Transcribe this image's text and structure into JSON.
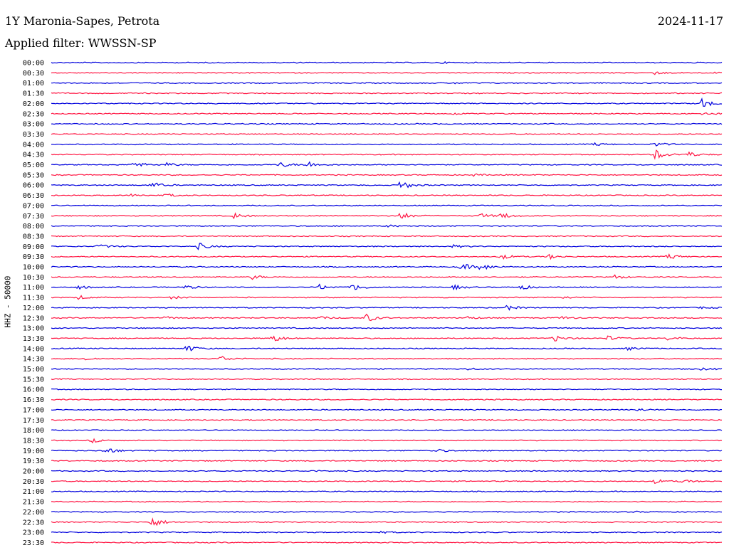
{
  "header": {
    "station": "1Y Maronia-Sapes, Petrota",
    "date": "2024-11-17",
    "filter_label": "Applied filter:",
    "filter_value": "WWSSN-SP",
    "channel": "HHZ - 50000"
  },
  "colors": {
    "even_trace": "#0000dd",
    "odd_trace": "#ff1744"
  },
  "chart_data": {
    "type": "line",
    "title": "1Y Maronia-Sapes, Petrota",
    "subtitle": "Applied filter: WWSSN-SP",
    "ylabel": "HHZ - 50000",
    "xlabel": "",
    "grid": false,
    "legend": "none",
    "traces": [
      {
        "time": "00:00",
        "events": [
          {
            "t": 0.58,
            "a": 0.25
          }
        ]
      },
      {
        "time": "00:30",
        "events": [
          {
            "t": 0.9,
            "a": 0.5
          },
          {
            "t": 0.99,
            "a": 0.15
          }
        ]
      },
      {
        "time": "01:00",
        "events": [
          {
            "t": 0.6,
            "a": 0.2
          }
        ]
      },
      {
        "time": "01:30",
        "events": []
      },
      {
        "time": "02:00",
        "events": [
          {
            "t": 0.97,
            "a": 2.0
          }
        ]
      },
      {
        "time": "02:30",
        "events": [
          {
            "t": 0.6,
            "a": 0.3
          },
          {
            "t": 0.97,
            "a": 0.6
          }
        ]
      },
      {
        "time": "03:00",
        "events": [
          {
            "t": 0.27,
            "a": 0.15
          }
        ]
      },
      {
        "time": "03:30",
        "events": [
          {
            "t": 0.17,
            "a": 0.15
          }
        ]
      },
      {
        "time": "04:00",
        "events": [
          {
            "t": 0.81,
            "a": 0.6
          },
          {
            "t": 0.9,
            "a": 0.9
          }
        ]
      },
      {
        "time": "04:30",
        "events": [
          {
            "t": 0.9,
            "a": 2.2
          },
          {
            "t": 0.95,
            "a": 1.0
          }
        ]
      },
      {
        "time": "05:00",
        "events": [
          {
            "t": 0.12,
            "a": 1.5
          },
          {
            "t": 0.17,
            "a": 0.8
          },
          {
            "t": 0.34,
            "a": 1.2
          },
          {
            "t": 0.38,
            "a": 1.5
          }
        ]
      },
      {
        "time": "05:30",
        "events": [
          {
            "t": 0.63,
            "a": 0.4
          }
        ]
      },
      {
        "time": "06:00",
        "events": [
          {
            "t": 0.15,
            "a": 1.2
          },
          {
            "t": 0.52,
            "a": 2.0
          }
        ]
      },
      {
        "time": "06:30",
        "events": [
          {
            "t": 0.12,
            "a": 0.5
          },
          {
            "t": 0.17,
            "a": 0.7
          }
        ]
      },
      {
        "time": "07:00",
        "events": []
      },
      {
        "time": "07:30",
        "events": [
          {
            "t": 0.27,
            "a": 1.2
          },
          {
            "t": 0.52,
            "a": 1.6
          },
          {
            "t": 0.64,
            "a": 0.8
          },
          {
            "t": 0.67,
            "a": 1.2
          }
        ]
      },
      {
        "time": "08:00",
        "events": [
          {
            "t": 0.5,
            "a": 0.5
          }
        ]
      },
      {
        "time": "08:30",
        "events": []
      },
      {
        "time": "09:00",
        "events": [
          {
            "t": 0.07,
            "a": 0.9
          },
          {
            "t": 0.22,
            "a": 1.3
          },
          {
            "t": 0.6,
            "a": 0.5
          }
        ]
      },
      {
        "time": "09:30",
        "events": [
          {
            "t": 0.67,
            "a": 1.1
          },
          {
            "t": 0.74,
            "a": 1.0
          },
          {
            "t": 0.92,
            "a": 1.1
          }
        ]
      },
      {
        "time": "10:00",
        "events": [
          {
            "t": 0.61,
            "a": 1.6
          },
          {
            "t": 0.64,
            "a": 1.4
          }
        ]
      },
      {
        "time": "10:30",
        "events": [
          {
            "t": 0.3,
            "a": 0.8
          },
          {
            "t": 0.84,
            "a": 0.8
          }
        ]
      },
      {
        "time": "11:00",
        "events": [
          {
            "t": 0.04,
            "a": 0.7
          },
          {
            "t": 0.2,
            "a": 0.8
          },
          {
            "t": 0.4,
            "a": 1.0
          },
          {
            "t": 0.45,
            "a": 1.5
          },
          {
            "t": 0.6,
            "a": 0.9
          },
          {
            "t": 0.7,
            "a": 0.9
          }
        ]
      },
      {
        "time": "11:30",
        "events": [
          {
            "t": 0.04,
            "a": 0.8
          },
          {
            "t": 0.18,
            "a": 0.6
          },
          {
            "t": 0.76,
            "a": 0.5
          }
        ]
      },
      {
        "time": "12:00",
        "events": [
          {
            "t": 0.68,
            "a": 0.9
          },
          {
            "t": 0.97,
            "a": 0.4
          }
        ]
      },
      {
        "time": "12:30",
        "events": [
          {
            "t": 0.17,
            "a": 0.5
          },
          {
            "t": 0.4,
            "a": 0.6
          },
          {
            "t": 0.47,
            "a": 1.6
          },
          {
            "t": 0.62,
            "a": 0.6
          },
          {
            "t": 0.76,
            "a": 0.6
          }
        ]
      },
      {
        "time": "13:00",
        "events": []
      },
      {
        "time": "13:30",
        "events": [
          {
            "t": 0.33,
            "a": 1.6
          },
          {
            "t": 0.75,
            "a": 1.3
          },
          {
            "t": 0.83,
            "a": 0.9
          },
          {
            "t": 0.92,
            "a": 0.8
          }
        ]
      },
      {
        "time": "14:00",
        "events": [
          {
            "t": 0.2,
            "a": 1.5
          },
          {
            "t": 0.86,
            "a": 0.6
          }
        ]
      },
      {
        "time": "14:30",
        "events": [
          {
            "t": 0.05,
            "a": 0.5
          },
          {
            "t": 0.25,
            "a": 1.2
          }
        ]
      },
      {
        "time": "15:00",
        "events": [
          {
            "t": 0.62,
            "a": 0.4
          },
          {
            "t": 0.97,
            "a": 0.5
          }
        ]
      },
      {
        "time": "15:30",
        "events": []
      },
      {
        "time": "16:00",
        "events": []
      },
      {
        "time": "16:30",
        "events": []
      },
      {
        "time": "17:00",
        "events": [
          {
            "t": 0.87,
            "a": 0.7
          }
        ]
      },
      {
        "time": "17:30",
        "events": []
      },
      {
        "time": "18:00",
        "events": []
      },
      {
        "time": "18:30",
        "events": [
          {
            "t": 0.06,
            "a": 0.8
          }
        ]
      },
      {
        "time": "19:00",
        "events": [
          {
            "t": 0.08,
            "a": 1.4
          },
          {
            "t": 0.57,
            "a": 0.8
          }
        ]
      },
      {
        "time": "19:30",
        "events": []
      },
      {
        "time": "20:00",
        "events": [
          {
            "t": 0.39,
            "a": 0.2
          }
        ]
      },
      {
        "time": "20:30",
        "events": [
          {
            "t": 0.9,
            "a": 0.8
          },
          {
            "t": 0.94,
            "a": 0.7
          }
        ]
      },
      {
        "time": "21:00",
        "events": []
      },
      {
        "time": "21:30",
        "events": []
      },
      {
        "time": "22:00",
        "events": [
          {
            "t": 0.87,
            "a": 0.15
          }
        ]
      },
      {
        "time": "22:30",
        "events": [
          {
            "t": 0.15,
            "a": 2.1
          }
        ]
      },
      {
        "time": "23:00",
        "events": [
          {
            "t": 0.49,
            "a": 0.3
          }
        ]
      },
      {
        "time": "23:30",
        "events": []
      }
    ],
    "trace_time_window_min": 30,
    "x_units": "fraction of 30-minute trace"
  }
}
